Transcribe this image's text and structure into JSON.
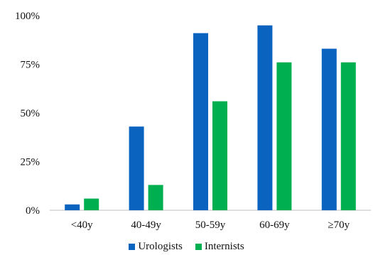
{
  "chart_data": {
    "type": "bar",
    "title": "",
    "xlabel": "",
    "ylabel": "",
    "categories": [
      "<40y",
      "40-49y",
      "50-59y",
      "60-69y",
      "≥70y"
    ],
    "series": [
      {
        "name": "Urologists",
        "color": "#0a63bf",
        "values": [
          3,
          43,
          91,
          95,
          83
        ]
      },
      {
        "name": "Internists",
        "color": "#00b050",
        "values": [
          6,
          13,
          56,
          76,
          76
        ]
      }
    ],
    "ylim": [
      0,
      100
    ],
    "yticks": [
      0,
      25,
      50,
      75,
      100
    ],
    "ytick_labels": [
      "0%",
      "25%",
      "50%",
      "75%",
      "100%"
    ],
    "grid": false,
    "legend_position": "bottom"
  }
}
